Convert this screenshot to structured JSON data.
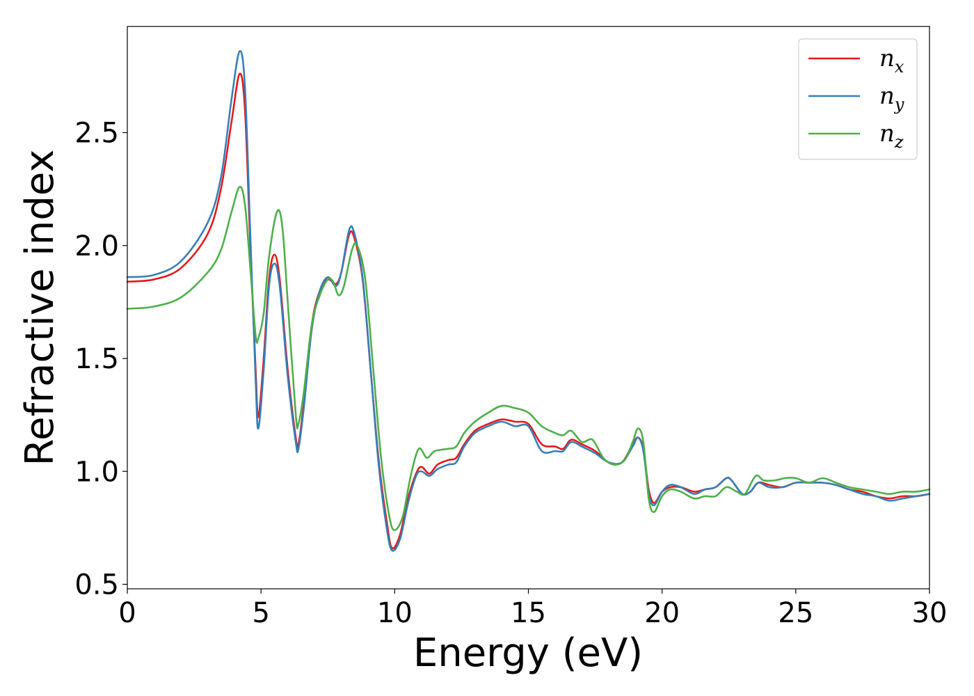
{
  "chart_data": {
    "type": "line",
    "title": "",
    "xlabel": "Energy (eV)",
    "ylabel": "Refractive index",
    "xlim": [
      0,
      30
    ],
    "ylim": [
      0.48,
      2.97
    ],
    "xticks": [
      0,
      5,
      10,
      15,
      20,
      25,
      30
    ],
    "xtick_labels": [
      "0",
      "5",
      "10",
      "15",
      "20",
      "25",
      "30"
    ],
    "yticks": [
      0.5,
      1.0,
      1.5,
      2.0,
      2.5
    ],
    "ytick_labels": [
      "0.5",
      "1.0",
      "1.5",
      "2.0",
      "2.5"
    ],
    "grid": false,
    "legend_position": "top-right",
    "series": [
      {
        "name": "n_x",
        "legend_main": "n",
        "legend_sub": "x",
        "color": "#e41a1c",
        "points": [
          [
            0,
            1.84
          ],
          [
            1,
            1.85
          ],
          [
            2,
            1.9
          ],
          [
            3,
            2.05
          ],
          [
            3.5,
            2.25
          ],
          [
            3.9,
            2.55
          ],
          [
            4.2,
            2.76
          ],
          [
            4.4,
            2.6
          ],
          [
            4.6,
            2.0
          ],
          [
            4.8,
            1.45
          ],
          [
            4.9,
            1.24
          ],
          [
            5.1,
            1.5
          ],
          [
            5.3,
            1.85
          ],
          [
            5.5,
            1.96
          ],
          [
            5.7,
            1.85
          ],
          [
            6.0,
            1.45
          ],
          [
            6.3,
            1.15
          ],
          [
            6.4,
            1.12
          ],
          [
            6.6,
            1.3
          ],
          [
            6.9,
            1.65
          ],
          [
            7.2,
            1.8
          ],
          [
            7.5,
            1.85
          ],
          [
            7.8,
            1.83
          ],
          [
            8.0,
            1.88
          ],
          [
            8.3,
            2.05
          ],
          [
            8.5,
            2.03
          ],
          [
            8.8,
            1.85
          ],
          [
            9.1,
            1.45
          ],
          [
            9.4,
            1.05
          ],
          [
            9.7,
            0.78
          ],
          [
            9.9,
            0.66
          ],
          [
            10.2,
            0.72
          ],
          [
            10.5,
            0.88
          ],
          [
            10.8,
            0.99
          ],
          [
            11.0,
            1.02
          ],
          [
            11.3,
            0.99
          ],
          [
            11.6,
            1.03
          ],
          [
            12.0,
            1.05
          ],
          [
            12.3,
            1.06
          ],
          [
            12.6,
            1.12
          ],
          [
            13.0,
            1.18
          ],
          [
            13.5,
            1.21
          ],
          [
            14.0,
            1.23
          ],
          [
            14.5,
            1.22
          ],
          [
            15.0,
            1.21
          ],
          [
            15.5,
            1.12
          ],
          [
            16.0,
            1.11
          ],
          [
            16.3,
            1.1
          ],
          [
            16.6,
            1.14
          ],
          [
            17.0,
            1.12
          ],
          [
            17.5,
            1.09
          ],
          [
            18.0,
            1.04
          ],
          [
            18.5,
            1.04
          ],
          [
            18.9,
            1.12
          ],
          [
            19.1,
            1.15
          ],
          [
            19.3,
            1.1
          ],
          [
            19.5,
            0.92
          ],
          [
            19.7,
            0.86
          ],
          [
            20.0,
            0.91
          ],
          [
            20.3,
            0.93
          ],
          [
            20.7,
            0.93
          ],
          [
            21.2,
            0.91
          ],
          [
            21.6,
            0.92
          ],
          [
            22.0,
            0.93
          ],
          [
            22.4,
            0.97
          ],
          [
            22.6,
            0.96
          ],
          [
            23.0,
            0.9
          ],
          [
            23.3,
            0.91
          ],
          [
            23.6,
            0.95
          ],
          [
            24.0,
            0.94
          ],
          [
            24.5,
            0.93
          ],
          [
            25.0,
            0.95
          ],
          [
            25.5,
            0.95
          ],
          [
            26.0,
            0.95
          ],
          [
            26.5,
            0.94
          ],
          [
            27.0,
            0.92
          ],
          [
            27.5,
            0.91
          ],
          [
            28.0,
            0.89
          ],
          [
            28.5,
            0.88
          ],
          [
            29.0,
            0.89
          ],
          [
            29.5,
            0.89
          ],
          [
            30,
            0.9
          ]
        ]
      },
      {
        "name": "n_y",
        "legend_main": "n",
        "legend_sub": "y",
        "color": "#377eb8",
        "points": [
          [
            0,
            1.86
          ],
          [
            1,
            1.87
          ],
          [
            2,
            1.93
          ],
          [
            3,
            2.1
          ],
          [
            3.5,
            2.3
          ],
          [
            3.9,
            2.65
          ],
          [
            4.2,
            2.86
          ],
          [
            4.4,
            2.7
          ],
          [
            4.6,
            2.05
          ],
          [
            4.8,
            1.4
          ],
          [
            4.9,
            1.19
          ],
          [
            5.1,
            1.45
          ],
          [
            5.3,
            1.82
          ],
          [
            5.5,
            1.92
          ],
          [
            5.7,
            1.82
          ],
          [
            6.0,
            1.42
          ],
          [
            6.3,
            1.13
          ],
          [
            6.4,
            1.1
          ],
          [
            6.6,
            1.28
          ],
          [
            6.9,
            1.63
          ],
          [
            7.2,
            1.8
          ],
          [
            7.5,
            1.86
          ],
          [
            7.8,
            1.82
          ],
          [
            8.0,
            1.88
          ],
          [
            8.3,
            2.07
          ],
          [
            8.5,
            2.05
          ],
          [
            8.8,
            1.86
          ],
          [
            9.1,
            1.45
          ],
          [
            9.4,
            1.03
          ],
          [
            9.7,
            0.75
          ],
          [
            9.9,
            0.65
          ],
          [
            10.2,
            0.7
          ],
          [
            10.5,
            0.86
          ],
          [
            10.8,
            0.98
          ],
          [
            11.0,
            1.0
          ],
          [
            11.3,
            0.98
          ],
          [
            11.6,
            1.01
          ],
          [
            12.0,
            1.03
          ],
          [
            12.3,
            1.04
          ],
          [
            12.6,
            1.11
          ],
          [
            13.0,
            1.17
          ],
          [
            13.5,
            1.2
          ],
          [
            14.0,
            1.22
          ],
          [
            14.5,
            1.2
          ],
          [
            15.0,
            1.2
          ],
          [
            15.5,
            1.09
          ],
          [
            16.0,
            1.09
          ],
          [
            16.3,
            1.09
          ],
          [
            16.6,
            1.13
          ],
          [
            17.0,
            1.11
          ],
          [
            17.5,
            1.08
          ],
          [
            18.0,
            1.04
          ],
          [
            18.5,
            1.04
          ],
          [
            18.9,
            1.11
          ],
          [
            19.1,
            1.15
          ],
          [
            19.3,
            1.09
          ],
          [
            19.5,
            0.9
          ],
          [
            19.7,
            0.85
          ],
          [
            20.0,
            0.91
          ],
          [
            20.3,
            0.94
          ],
          [
            20.7,
            0.93
          ],
          [
            21.2,
            0.9
          ],
          [
            21.6,
            0.92
          ],
          [
            22.0,
            0.93
          ],
          [
            22.4,
            0.97
          ],
          [
            22.6,
            0.96
          ],
          [
            23.0,
            0.9
          ],
          [
            23.3,
            0.91
          ],
          [
            23.6,
            0.95
          ],
          [
            24.0,
            0.93
          ],
          [
            24.5,
            0.93
          ],
          [
            25.0,
            0.95
          ],
          [
            25.5,
            0.95
          ],
          [
            26.0,
            0.95
          ],
          [
            26.5,
            0.94
          ],
          [
            27.0,
            0.92
          ],
          [
            27.5,
            0.9
          ],
          [
            28.0,
            0.89
          ],
          [
            28.5,
            0.87
          ],
          [
            29.0,
            0.88
          ],
          [
            29.5,
            0.89
          ],
          [
            30,
            0.9
          ]
        ]
      },
      {
        "name": "n_z",
        "legend_main": "n",
        "legend_sub": "z",
        "color": "#4daf4a",
        "points": [
          [
            0,
            1.72
          ],
          [
            1,
            1.73
          ],
          [
            2,
            1.77
          ],
          [
            3,
            1.88
          ],
          [
            3.5,
            1.98
          ],
          [
            3.9,
            2.15
          ],
          [
            4.2,
            2.26
          ],
          [
            4.4,
            2.18
          ],
          [
            4.6,
            1.9
          ],
          [
            4.8,
            1.6
          ],
          [
            4.9,
            1.59
          ],
          [
            5.1,
            1.7
          ],
          [
            5.3,
            1.95
          ],
          [
            5.6,
            2.15
          ],
          [
            5.8,
            2.08
          ],
          [
            6.0,
            1.75
          ],
          [
            6.3,
            1.25
          ],
          [
            6.4,
            1.21
          ],
          [
            6.6,
            1.35
          ],
          [
            6.9,
            1.65
          ],
          [
            7.2,
            1.78
          ],
          [
            7.5,
            1.85
          ],
          [
            7.7,
            1.84
          ],
          [
            7.9,
            1.78
          ],
          [
            8.1,
            1.82
          ],
          [
            8.4,
            1.98
          ],
          [
            8.6,
            2.0
          ],
          [
            8.9,
            1.85
          ],
          [
            9.2,
            1.45
          ],
          [
            9.5,
            1.05
          ],
          [
            9.8,
            0.8
          ],
          [
            10.0,
            0.74
          ],
          [
            10.3,
            0.8
          ],
          [
            10.6,
            0.98
          ],
          [
            10.9,
            1.1
          ],
          [
            11.2,
            1.06
          ],
          [
            11.5,
            1.09
          ],
          [
            12.0,
            1.1
          ],
          [
            12.3,
            1.11
          ],
          [
            12.6,
            1.17
          ],
          [
            13.0,
            1.22
          ],
          [
            13.5,
            1.26
          ],
          [
            14.0,
            1.29
          ],
          [
            14.5,
            1.28
          ],
          [
            15.0,
            1.26
          ],
          [
            15.5,
            1.2
          ],
          [
            16.0,
            1.17
          ],
          [
            16.3,
            1.16
          ],
          [
            16.6,
            1.18
          ],
          [
            17.0,
            1.13
          ],
          [
            17.4,
            1.14
          ],
          [
            17.8,
            1.06
          ],
          [
            18.2,
            1.03
          ],
          [
            18.6,
            1.05
          ],
          [
            18.9,
            1.13
          ],
          [
            19.1,
            1.19
          ],
          [
            19.3,
            1.13
          ],
          [
            19.5,
            0.88
          ],
          [
            19.7,
            0.82
          ],
          [
            20.0,
            0.89
          ],
          [
            20.3,
            0.92
          ],
          [
            20.7,
            0.91
          ],
          [
            21.2,
            0.88
          ],
          [
            21.6,
            0.89
          ],
          [
            22.0,
            0.89
          ],
          [
            22.4,
            0.93
          ],
          [
            22.8,
            0.91
          ],
          [
            23.1,
            0.9
          ],
          [
            23.5,
            0.98
          ],
          [
            23.8,
            0.96
          ],
          [
            24.2,
            0.96
          ],
          [
            24.6,
            0.97
          ],
          [
            25.0,
            0.97
          ],
          [
            25.5,
            0.95
          ],
          [
            26.0,
            0.97
          ],
          [
            26.5,
            0.95
          ],
          [
            27.0,
            0.93
          ],
          [
            27.5,
            0.92
          ],
          [
            28.0,
            0.91
          ],
          [
            28.5,
            0.9
          ],
          [
            29.0,
            0.91
          ],
          [
            29.5,
            0.91
          ],
          [
            30,
            0.92
          ]
        ]
      }
    ]
  }
}
